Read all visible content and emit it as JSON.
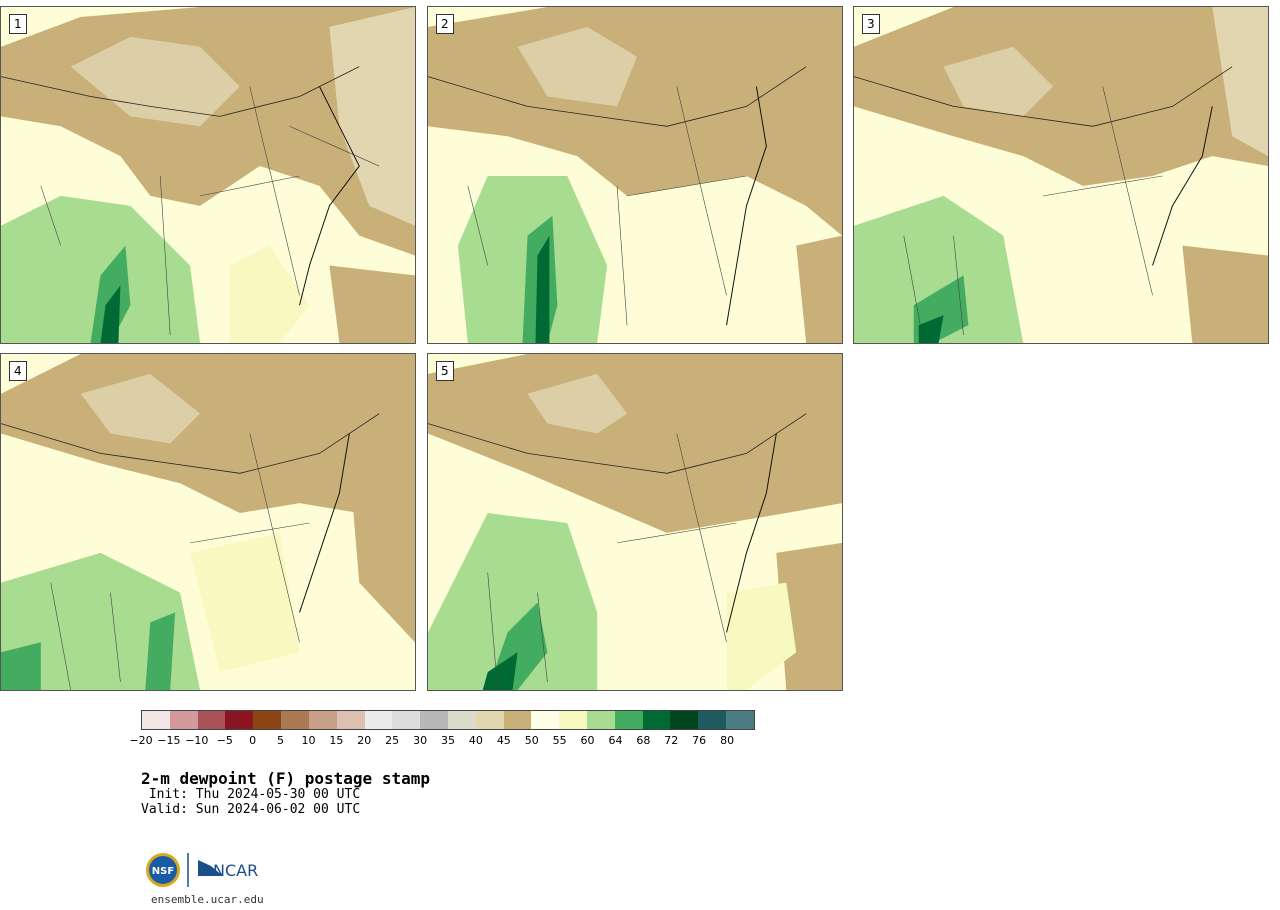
{
  "panels": [
    {
      "label": "1"
    },
    {
      "label": "2"
    },
    {
      "label": "3"
    },
    {
      "label": "4"
    },
    {
      "label": "5"
    }
  ],
  "colorbar": {
    "ticks": [
      "−20",
      "−15",
      "−10",
      "−5",
      "0",
      "5",
      "10",
      "15",
      "20",
      "25",
      "30",
      "35",
      "40",
      "45",
      "50",
      "55",
      "60",
      "64",
      "68",
      "72",
      "76",
      "80"
    ],
    "colors": [
      "#f3e6e6",
      "#d39a9e",
      "#a95358",
      "#8a1520",
      "#8b4513",
      "#aa7a55",
      "#c8a088",
      "#dec0b0",
      "#ececec",
      "#dcdcdc",
      "#b8b8b8",
      "#dcdccc",
      "#e2d6b0",
      "#c8b078",
      "#fefee6",
      "#f6fac0",
      "#a8dc90",
      "#44ac60",
      "#006a35",
      "#00441b",
      "#1f5a5e",
      "#4a7d82"
    ]
  },
  "title": "2-m dewpoint (F) postage stamp",
  "init": " Init: Thu 2024-05-30 00 UTC",
  "valid": "Valid: Sun 2024-06-02 00 UTC",
  "logo": {
    "left": "NSF",
    "right": "NCAR"
  },
  "site": "ensemble.ucar.edu"
}
